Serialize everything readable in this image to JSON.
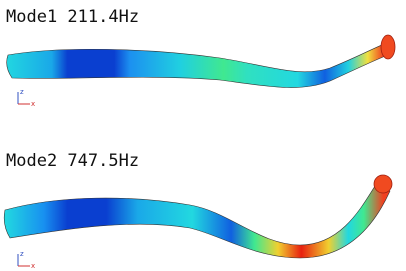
{
  "panels": [
    {
      "title": "Mode1 211.4Hz",
      "triad": {
        "vertical": "z",
        "horizontal": "x"
      }
    },
    {
      "title": "Mode2 747.5Hz",
      "triad": {
        "vertical": "z",
        "horizontal": "x"
      }
    }
  ]
}
